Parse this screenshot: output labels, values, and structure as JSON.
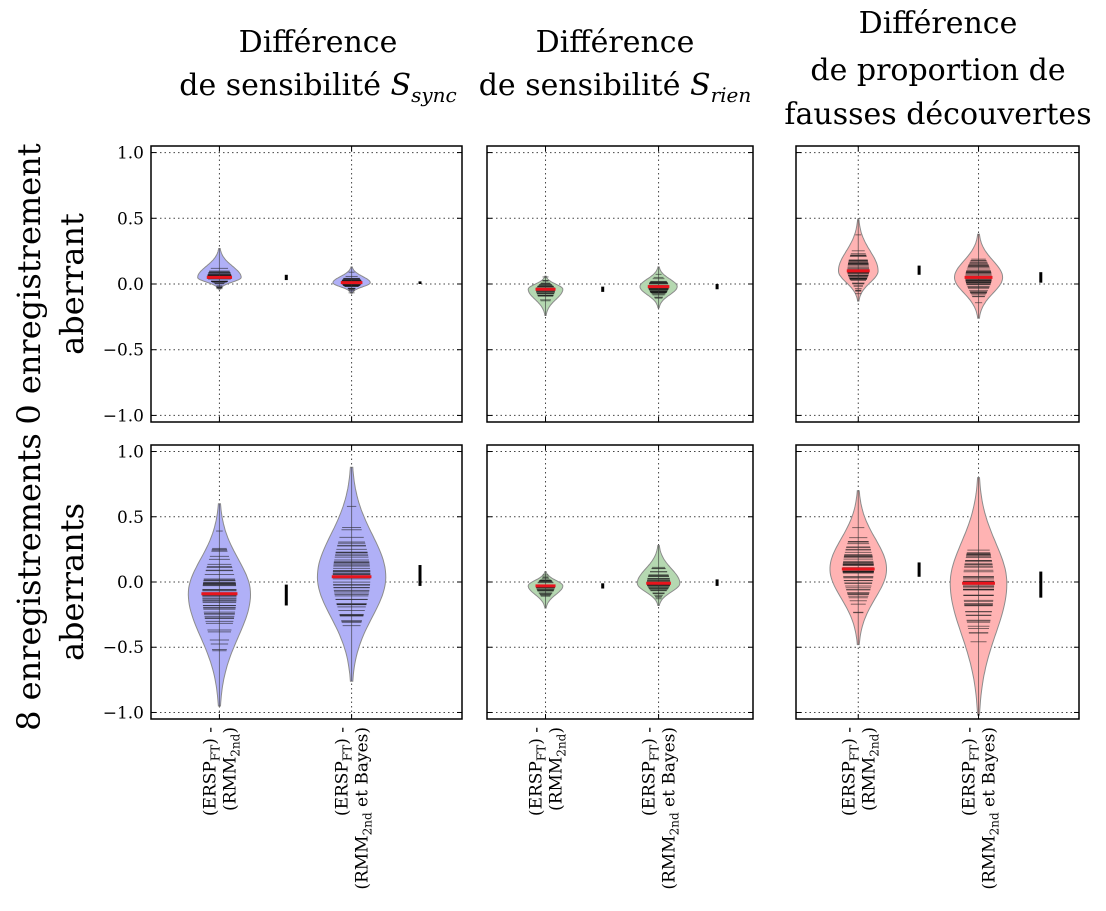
{
  "column_titles": [
    [
      "Différence",
      "de sensibilité S",
      "sync"
    ],
    [
      "Différence",
      "de sensibilité S",
      "rien"
    ],
    [
      "Différence",
      "de proportion de",
      "fausses découvertes"
    ]
  ],
  "row_titles": [
    [
      "0 enregistrement",
      "aberrant"
    ],
    [
      "8 enregistrements",
      "aberrants"
    ]
  ],
  "x_tick_labels": [
    {
      "line1": "(ERSP",
      "sub1": "FT",
      "dash": ") -",
      "line2": "(RMM",
      "sub2": "2nd",
      "tail2": ")"
    },
    {
      "line1": "(ERSP",
      "sub1": "FT",
      "dash": ") -",
      "line2": "(RMM",
      "sub2": "2nd",
      "tail2": " et Bayes)"
    }
  ],
  "y_tick_labels": [
    "1.0",
    "0.5",
    "0.0",
    "−0.5",
    "−1.0"
  ],
  "colors": {
    "sync": "#b0b0f7",
    "rien": "#b5d8b1",
    "fdr": "#ffb3b3",
    "median": "#e8141d",
    "outline": "#8c8c8c"
  },
  "chart_data": [
    {
      "type": "violin",
      "row": 0,
      "col": 0,
      "series": "sync",
      "ylim": [
        -1.05,
        1.05
      ],
      "grid": true,
      "categories": [
        "(ERSP_FT) - (RMM_2nd)",
        "(ERSP_FT) - (RMM_2nd et Bayes)"
      ],
      "violins": [
        {
          "median": 0.05,
          "min": -0.04,
          "max": 0.27,
          "half_width": 0.14,
          "ci": [
            0.03,
            0.07
          ],
          "n_points": 45
        },
        {
          "median": 0.01,
          "min": -0.07,
          "max": 0.13,
          "half_width": 0.12,
          "ci": [
            0.0,
            0.02
          ],
          "n_points": 45
        }
      ]
    },
    {
      "type": "violin",
      "row": 0,
      "col": 1,
      "series": "rien",
      "ylim": [
        -1.05,
        1.05
      ],
      "grid": true,
      "categories": [
        "(ERSP_FT) - (RMM_2nd)",
        "(ERSP_FT) - (RMM_2nd et Bayes)"
      ],
      "violins": [
        {
          "median": -0.04,
          "min": -0.24,
          "max": 0.06,
          "half_width": 0.13,
          "ci": [
            -0.06,
            -0.02
          ],
          "n_points": 45
        },
        {
          "median": -0.02,
          "min": -0.18,
          "max": 0.13,
          "half_width": 0.14,
          "ci": [
            -0.04,
            0.0
          ],
          "n_points": 45
        }
      ]
    },
    {
      "type": "violin",
      "row": 0,
      "col": 2,
      "series": "fdr",
      "ylim": [
        -1.05,
        1.05
      ],
      "grid": true,
      "categories": [
        "(ERSP_FT) - (RMM_2nd)",
        "(ERSP_FT) - (RMM_2nd et Bayes)"
      ],
      "violins": [
        {
          "median": 0.1,
          "min": -0.13,
          "max": 0.49,
          "half_width": 0.14,
          "ci": [
            0.07,
            0.14
          ],
          "n_points": 55
        },
        {
          "median": 0.05,
          "min": -0.26,
          "max": 0.38,
          "half_width": 0.17,
          "ci": [
            0.01,
            0.09
          ],
          "n_points": 55
        }
      ]
    },
    {
      "type": "violin",
      "row": 1,
      "col": 0,
      "series": "sync",
      "ylim": [
        -1.05,
        1.05
      ],
      "grid": true,
      "categories": [
        "(ERSP_FT) - (RMM_2nd)",
        "(ERSP_FT) - (RMM_2nd et Bayes)"
      ],
      "violins": [
        {
          "median": -0.09,
          "min": -0.95,
          "max": 0.6,
          "half_width": 0.2,
          "ci": [
            -0.18,
            -0.02
          ],
          "n_points": 60
        },
        {
          "median": 0.04,
          "min": -0.76,
          "max": 0.88,
          "half_width": 0.22,
          "ci": [
            -0.03,
            0.13
          ],
          "n_points": 60
        }
      ]
    },
    {
      "type": "violin",
      "row": 1,
      "col": 1,
      "series": "rien",
      "ylim": [
        -1.05,
        1.05
      ],
      "grid": true,
      "categories": [
        "(ERSP_FT) - (RMM_2nd)",
        "(ERSP_FT) - (RMM_2nd et Bayes)"
      ],
      "violins": [
        {
          "median": -0.03,
          "min": -0.2,
          "max": 0.08,
          "half_width": 0.13,
          "ci": [
            -0.05,
            -0.01
          ],
          "n_points": 45
        },
        {
          "median": -0.01,
          "min": -0.18,
          "max": 0.28,
          "half_width": 0.16,
          "ci": [
            -0.03,
            0.02
          ],
          "n_points": 45
        }
      ]
    },
    {
      "type": "violin",
      "row": 1,
      "col": 2,
      "series": "fdr",
      "ylim": [
        -1.05,
        1.05
      ],
      "grid": true,
      "categories": [
        "(ERSP_FT) - (RMM_2nd)",
        "(ERSP_FT) - (RMM_2nd et Bayes)"
      ],
      "violins": [
        {
          "median": 0.1,
          "min": -0.48,
          "max": 0.7,
          "half_width": 0.2,
          "ci": [
            0.04,
            0.15
          ],
          "n_points": 60
        },
        {
          "median": -0.01,
          "min": -1.02,
          "max": 0.8,
          "half_width": 0.2,
          "ci": [
            -0.12,
            0.08
          ],
          "n_points": 60
        }
      ]
    }
  ]
}
